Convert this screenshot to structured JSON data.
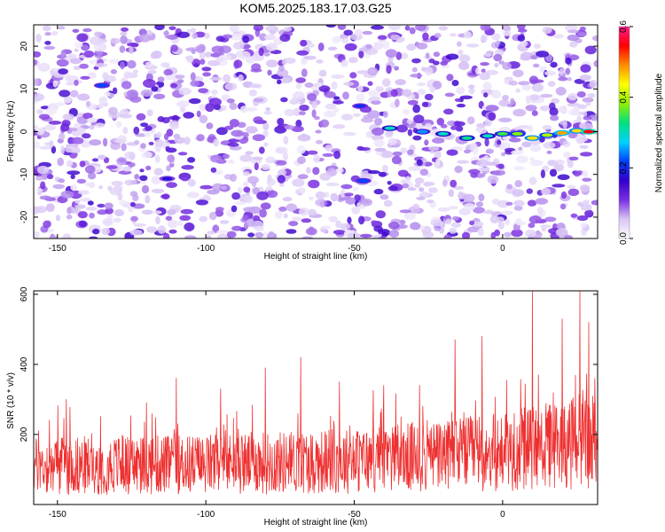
{
  "title": "KOM5.2025.183.17.03.G25",
  "chart_data": [
    {
      "type": "heatmap",
      "xlabel": "Height of straight line (km)",
      "ylabel": "Frequency (Hz)",
      "xlim": [
        -158,
        32
      ],
      "ylim": [
        -25,
        25
      ],
      "x_ticks": [
        -150,
        -100,
        -50,
        0
      ],
      "y_ticks": [
        -20,
        -10,
        0,
        10,
        20
      ],
      "colorbar": {
        "label": "Normalized spectral amplitude",
        "range": [
          0.0,
          0.6
        ],
        "ticks": [
          "0.0",
          "0.2",
          "0.4",
          "0.6"
        ],
        "colors": [
          "#ffffff",
          "#d9c6f5",
          "#7a2fe0",
          "#3300cc",
          "#0040ff",
          "#00d2ff",
          "#00e080",
          "#8cf000",
          "#ffff00",
          "#ff8c00",
          "#ff0000",
          "#ff1a8c"
        ]
      },
      "features": [
        {
          "x": -135,
          "y": 10.8,
          "value": 0.22
        },
        {
          "x": -113,
          "y": -11,
          "value": 0.18
        },
        {
          "x": -48,
          "y": 6,
          "value": 0.2
        },
        {
          "x": -47,
          "y": -11.5,
          "value": 0.22
        },
        {
          "x": -38,
          "y": 0.8,
          "value": 0.3
        },
        {
          "x": -27,
          "y": 0,
          "value": 0.25
        },
        {
          "x": -20,
          "y": -0.5,
          "value": 0.3
        },
        {
          "x": -12,
          "y": -1.5,
          "value": 0.32
        },
        {
          "x": -5,
          "y": -1,
          "value": 0.3
        },
        {
          "x": 0,
          "y": -0.5,
          "value": 0.35
        },
        {
          "x": 5,
          "y": -0.5,
          "value": 0.38
        },
        {
          "x": 10,
          "y": -1.5,
          "value": 0.45
        },
        {
          "x": 15,
          "y": -0.8,
          "value": 0.4
        },
        {
          "x": 20,
          "y": -0.3,
          "value": 0.48
        },
        {
          "x": 25,
          "y": 0.2,
          "value": 0.45
        },
        {
          "x": 29,
          "y": 0,
          "value": 0.55
        }
      ]
    },
    {
      "type": "line",
      "xlabel": "Height of straight line (km)",
      "ylabel": "SNR (10 * v/v)",
      "xlim": [
        -158,
        32
      ],
      "ylim": [
        0,
        610
      ],
      "x_ticks": [
        -150,
        -100,
        -50,
        0
      ],
      "y_ticks": [
        200,
        400,
        600
      ],
      "color": "#ee3030",
      "trend": {
        "x": [
          -158,
          -100,
          -50,
          0,
          32
        ],
        "y": [
          110,
          115,
          125,
          150,
          185
        ]
      },
      "peaks": [
        {
          "x": -147,
          "y": 300
        },
        {
          "x": -120,
          "y": 290
        },
        {
          "x": -110,
          "y": 360
        },
        {
          "x": -95,
          "y": 330
        },
        {
          "x": -80,
          "y": 390
        },
        {
          "x": -68,
          "y": 420
        },
        {
          "x": -55,
          "y": 350
        },
        {
          "x": -40,
          "y": 340
        },
        {
          "x": -28,
          "y": 340
        },
        {
          "x": -16,
          "y": 470
        },
        {
          "x": -7,
          "y": 480
        },
        {
          "x": 10,
          "y": 610
        },
        {
          "x": 20,
          "y": 530
        },
        {
          "x": 26,
          "y": 610
        },
        {
          "x": 29,
          "y": 520
        }
      ]
    }
  ]
}
